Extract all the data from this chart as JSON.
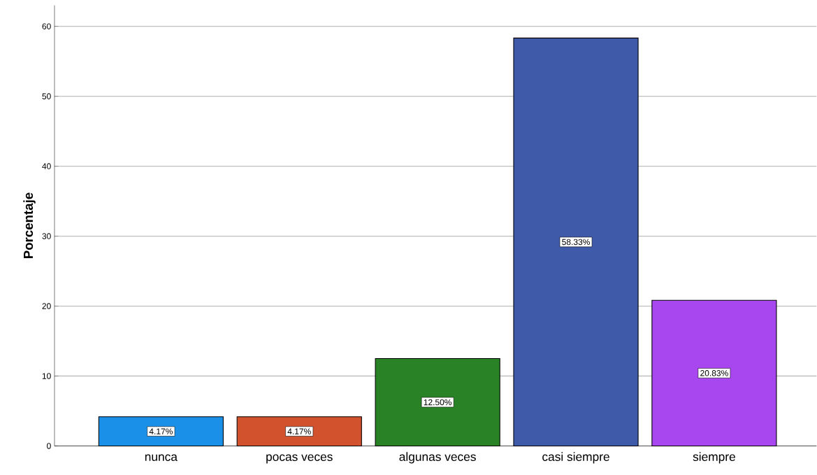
{
  "chart_data": {
    "type": "bar",
    "ylabel": "Porcentaje",
    "categories": [
      "nunca",
      "pocas veces",
      "algunas veces",
      "casi siempre",
      "siempre"
    ],
    "values": [
      4.17,
      4.17,
      12.5,
      58.33,
      20.83
    ],
    "colors": [
      "#1a90e8",
      "#d2522e",
      "#2a8227",
      "#3f5aa8",
      "#a846ef"
    ],
    "value_labels": [
      "4.17%",
      "4.17%",
      "12.50%",
      "58.33%",
      "20.83%"
    ],
    "ylim": [
      0,
      63
    ],
    "yticks": [
      0,
      10,
      20,
      30,
      40,
      50,
      60
    ],
    "grid": "y"
  }
}
